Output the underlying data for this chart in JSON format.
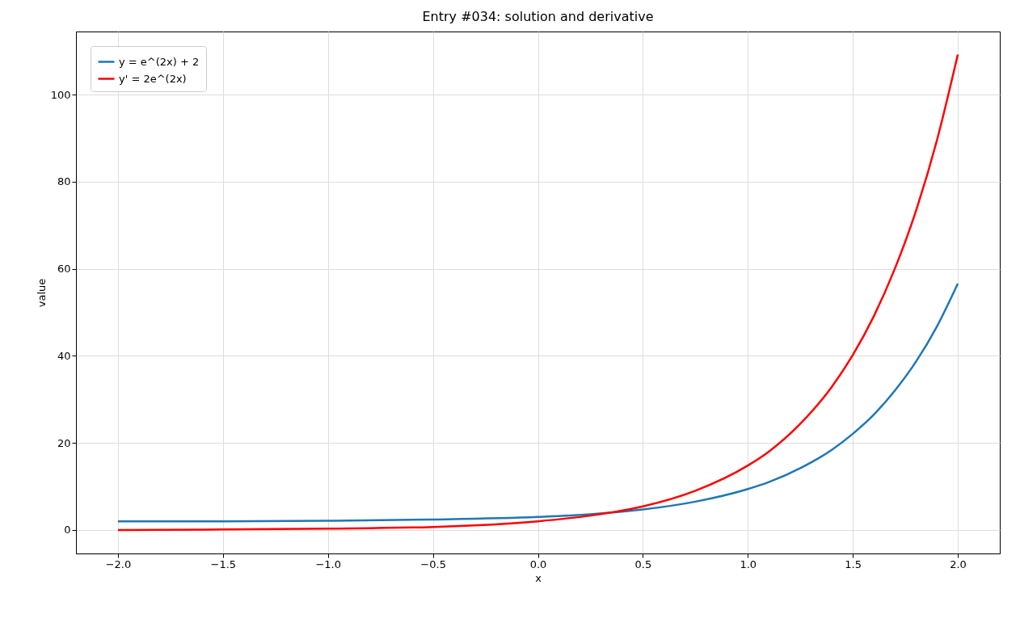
{
  "chart_data": {
    "type": "line",
    "title": "Entry #034: solution and derivative",
    "xlabel": "x",
    "ylabel": "value",
    "x": [
      -2,
      -1.5,
      -1,
      -0.5,
      0,
      0.25,
      0.5,
      0.75,
      1,
      1.1,
      1.25,
      1.4,
      1.5,
      1.6,
      1.7,
      1.8,
      1.9,
      2
    ],
    "series": [
      {
        "name": "y = e^(2x) + 2",
        "color": "#1f77b4",
        "values": [
          2.0,
          2.0,
          2.1,
          2.4,
          3,
          3.6,
          4.7,
          6.5,
          9.4,
          11,
          14.2,
          18.4,
          22.1,
          26.5,
          32,
          38.6,
          46.7,
          56.6
        ]
      },
      {
        "name": "y' = 2e^(2x)",
        "color": "#ff0000",
        "values": [
          0.0,
          0.1,
          0.3,
          0.7,
          2,
          3.3,
          5.4,
          9,
          14.8,
          18,
          24.4,
          32.9,
          40.2,
          49.1,
          60,
          73.2,
          89.4,
          109.2
        ]
      }
    ],
    "xlim": [
      -2.2,
      2.2
    ],
    "ylim": [
      -5.4,
      114.5
    ],
    "xticks": [
      {
        "value": -2,
        "label": "−2.0"
      },
      {
        "value": -1.5,
        "label": "−1.5"
      },
      {
        "value": -1,
        "label": "−1.0"
      },
      {
        "value": -0.5,
        "label": "−0.5"
      },
      {
        "value": 0,
        "label": "0.0"
      },
      {
        "value": 0.5,
        "label": "0.5"
      },
      {
        "value": 1,
        "label": "1.0"
      },
      {
        "value": 1.5,
        "label": "1.5"
      },
      {
        "value": 2,
        "label": "2.0"
      }
    ],
    "yticks": [
      0,
      20,
      40,
      60,
      80,
      100
    ],
    "grid": true,
    "legend": "top left",
    "marker": "none",
    "line_style": "solid"
  }
}
